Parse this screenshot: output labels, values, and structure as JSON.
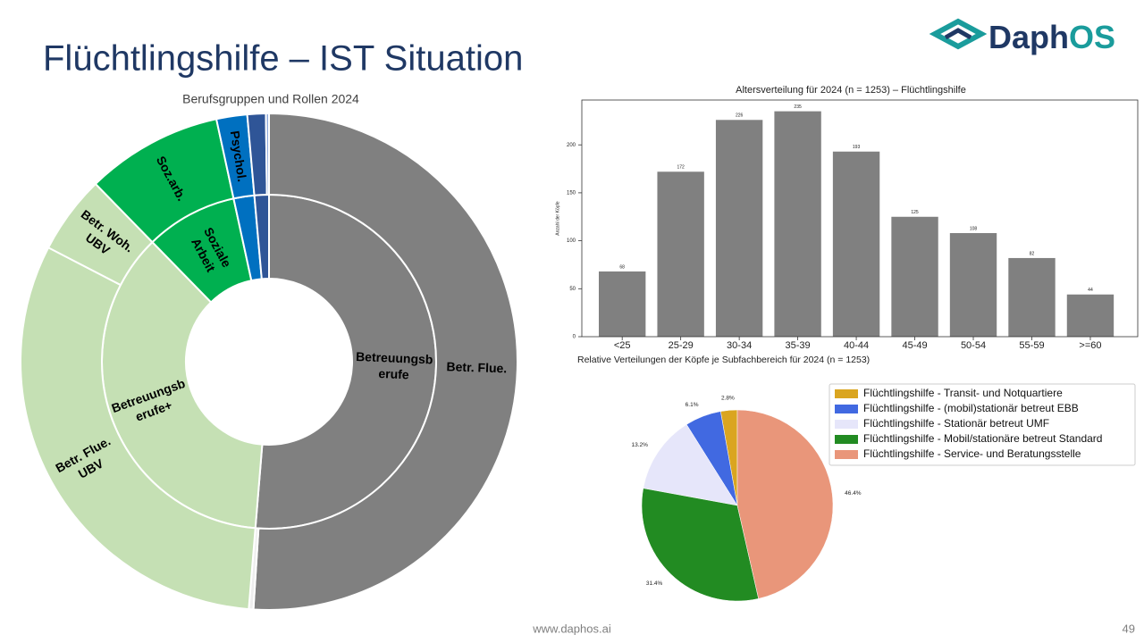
{
  "slide": {
    "title": "Flüchtlingshilfe – IST Situation",
    "logo": [
      "Daph",
      "OS"
    ],
    "footer": "www.daphos.ai",
    "page_number": 49
  },
  "chart_data": [
    {
      "type": "sunburst",
      "title": "Berufsgruppen und Rollen 2024",
      "rings": [
        {
          "labels": [
            [
              "Betreuungsb",
              "erufe"
            ],
            [
              "Betreuungsb",
              "erufe+"
            ],
            [
              "Soziale",
              "Arbeit"
            ],
            null,
            null
          ],
          "values": [
            51.3,
            36.4,
            8.9,
            2.0,
            1.4
          ],
          "colors": [
            "#808080",
            "#c5e0b4",
            "#00b050",
            "#0070c0",
            "#2f5597"
          ]
        },
        {
          "labels": [
            [
              "Betr. Flue."
            ],
            null,
            [
              "Betr. Flue.",
              "UBV"
            ],
            [
              "Betr. Woh.",
              "UBV"
            ],
            [
              "Soz.arb."
            ],
            [
              "Psychol."
            ],
            null,
            null
          ],
          "values": [
            51.0,
            0.3,
            31.3,
            5.1,
            8.9,
            2.0,
            1.2,
            0.2
          ],
          "colors": [
            "#808080",
            "#eeeeee",
            "#c5e0b4",
            "#c5e0b4",
            "#00b050",
            "#0070c0",
            "#2f5597",
            "#8faadc"
          ]
        }
      ]
    },
    {
      "type": "bar",
      "title": "Altersverteilung für 2024 (n = 1253) – Flüchtlingshilfe",
      "ylabel": "Anzahl der Köpfe",
      "categories": [
        "<25",
        "25-29",
        "30-34",
        "35-39",
        "40-44",
        "45-49",
        "50-54",
        "55-59",
        ">=60"
      ],
      "values": [
        68,
        172,
        226,
        235,
        193,
        125,
        108,
        82,
        44
      ],
      "color": "#808080",
      "ylim": [
        0,
        246.75
      ],
      "yticks": [
        0,
        50,
        100,
        150,
        200
      ]
    },
    {
      "type": "pie",
      "title": "Relative Verteilungen der Köpfe je Subfachbereich für 2024 (n = 1253)",
      "categories": [
        "Flüchtlingshilfe - Transit- und Notquartiere",
        "Flüchtlingshilfe - (mobil)stationär betreut EBB",
        "Flüchtlingshilfe - Stationär betreut UMF",
        "Flüchtlingshilfe - Mobil/stationäre betreut Standard",
        "Flüchtlingshilfe - Service- und Beratungsstelle"
      ],
      "values": [
        2.8,
        6.1,
        13.2,
        31.4,
        46.4
      ],
      "value_labels": [
        "2.8%",
        "6.1%",
        "13.2%",
        "31.4%",
        "46.4%"
      ],
      "colors": [
        "#daa520",
        "#4169e1",
        "#e6e6fa",
        "#228b22",
        "#e9967a"
      ],
      "start_angle": 90,
      "legend": "upper right"
    }
  ]
}
